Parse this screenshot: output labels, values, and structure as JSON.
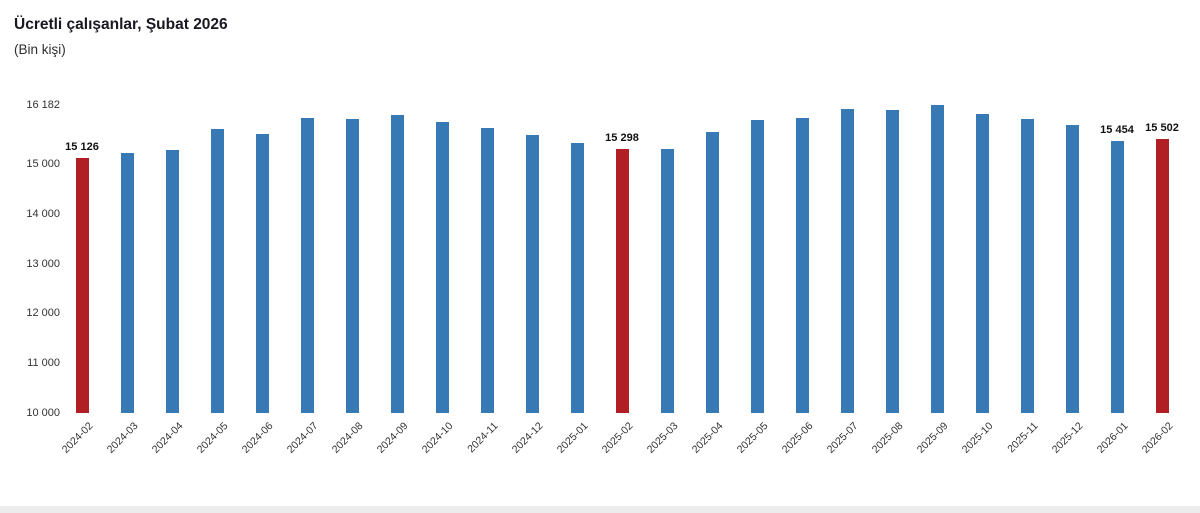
{
  "header": {
    "title": "Ücretli çalışanlar, Şubat 2026",
    "subtitle": "(Bin kişi)"
  },
  "chart_data": {
    "type": "bar",
    "title": "Ücretli çalışanlar, Şubat 2026",
    "subtitle": "(Bin kişi)",
    "ylabel": "Bin kişi",
    "xlabel": "",
    "categories": [
      "2024-02",
      "2024-03",
      "2024-04",
      "2024-05",
      "2024-06",
      "2024-07",
      "2024-08",
      "2024-09",
      "2024-10",
      "2024-11",
      "2024-12",
      "2025-01",
      "2025-02",
      "2025-03",
      "2025-04",
      "2025-05",
      "2025-06",
      "2025-07",
      "2025-08",
      "2025-09",
      "2025-10",
      "2025-11",
      "2025-12",
      "2026-01",
      "2026-02"
    ],
    "values": [
      15126,
      15220,
      15272,
      15693,
      15605,
      15917,
      15896,
      15983,
      15840,
      15722,
      15582,
      15420,
      15298,
      15308,
      15640,
      15872,
      15918,
      16109,
      16087,
      16182,
      16009,
      15908,
      15779,
      15454,
      15502
    ],
    "highlighted_categories": [
      "2024-02",
      "2025-02",
      "2026-02"
    ],
    "labeled_categories": [
      "2024-02",
      "2025-02",
      "2026-01",
      "2026-02"
    ],
    "data_labels": [
      "15 126",
      "15 298",
      "15 454",
      "15 502"
    ],
    "ylim": [
      10000,
      16182
    ],
    "yticks": [
      10000,
      11000,
      12000,
      13000,
      14000,
      15000,
      16182
    ],
    "grid": false,
    "legend_position": "none",
    "colors": {
      "default_bar": "#3779b5",
      "highlight_bar": "#b01f24"
    }
  }
}
